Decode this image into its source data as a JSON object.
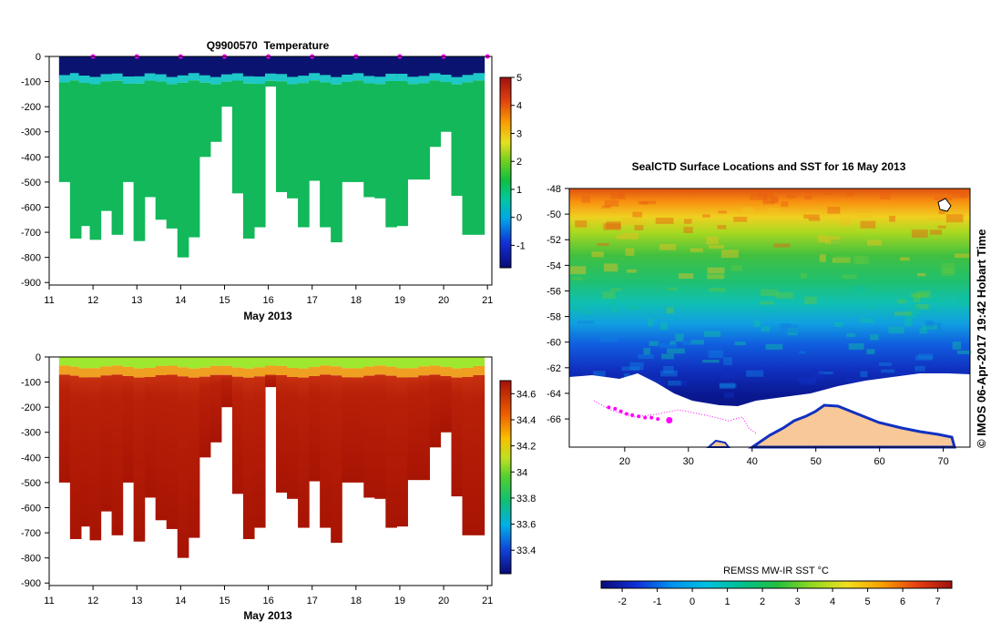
{
  "colors": {
    "temp_deep": "#12b85a",
    "temp_thermo": "#1ec8c8",
    "sal_deep": "#b01808",
    "sal_mid": "#c03010",
    "sal_surface": "#9fe830",
    "land": "#f8c898",
    "track": "#ff00ff"
  },
  "chart_data": [
    {
      "id": "temperature",
      "type": "heatmap",
      "title": "Q9900570  Temperature",
      "xlabel": "May 2013",
      "ylabel": "",
      "x_ticks": [
        "11",
        "12",
        "13",
        "14",
        "15",
        "16",
        "17",
        "18",
        "19",
        "20",
        "21"
      ],
      "xlim": [
        11,
        21.1
      ],
      "y_ticks": [
        "0",
        "-100",
        "-200",
        "-300",
        "-400",
        "-500",
        "-600",
        "-700",
        "-800",
        "-900"
      ],
      "ylim": [
        -910,
        0
      ],
      "colorbar": {
        "ticks": [
          "5",
          "4",
          "3",
          "2",
          "1",
          "0",
          "-1"
        ],
        "range": [
          -1.8,
          5
        ]
      },
      "profiles": {
        "day": [
          11.35,
          11.6,
          11.8,
          12.05,
          12.3,
          12.55,
          12.8,
          13.05,
          13.3,
          13.55,
          13.8,
          14.05,
          14.3,
          14.55,
          14.8,
          15.05,
          15.3,
          15.55,
          15.8,
          16.05,
          16.3,
          16.55,
          16.8,
          17.05,
          17.3,
          17.55,
          17.8,
          18.05,
          18.3,
          18.55,
          18.8,
          19.05,
          19.3,
          19.55,
          19.8,
          20.05,
          20.3,
          20.55,
          20.8
        ],
        "max_depth": [
          500,
          725,
          675,
          730,
          615,
          710,
          500,
          735,
          560,
          650,
          685,
          800,
          720,
          400,
          340,
          200,
          545,
          725,
          680,
          120,
          540,
          565,
          680,
          495,
          680,
          740,
          500,
          500,
          560,
          565,
          680,
          675,
          490,
          490,
          360,
          300,
          555,
          710,
          710
        ]
      },
      "markers_top": [
        12,
        13,
        14,
        15,
        16,
        17,
        18,
        19,
        20,
        21
      ]
    },
    {
      "id": "salinity",
      "type": "heatmap",
      "title": "",
      "xlabel": "May 2013",
      "ylabel": "",
      "x_ticks": [
        "11",
        "12",
        "13",
        "14",
        "15",
        "16",
        "17",
        "18",
        "19",
        "20",
        "21"
      ],
      "xlim": [
        11,
        21.1
      ],
      "y_ticks": [
        "0",
        "-100",
        "-200",
        "-300",
        "-400",
        "-500",
        "-600",
        "-700",
        "-800",
        "-900"
      ],
      "ylim": [
        -910,
        0
      ],
      "colorbar": {
        "ticks": [
          "34.6",
          "34.4",
          "34.2",
          "34",
          "33.8",
          "33.6",
          "33.4"
        ],
        "range": [
          33.22,
          34.7
        ]
      }
    },
    {
      "id": "sst_map",
      "type": "heatmap",
      "title": "SealCTD Surface Locations and SST for 16 May 2013",
      "x_ticks": [
        "20",
        "30",
        "40",
        "50",
        "60",
        "70"
      ],
      "xlim": [
        11.3,
        74.2
      ],
      "y_ticks": [
        "-48",
        "-50",
        "-52",
        "-54",
        "-56",
        "-58",
        "-60",
        "-62",
        "-64",
        "-66"
      ],
      "ylim": [
        -68.2,
        -48
      ],
      "colorbar_label": "REMSS MW-IR SST °C",
      "colorbar_ticks": [
        "-2",
        "-1",
        "0",
        "1",
        "2",
        "3",
        "4",
        "5",
        "6",
        "7"
      ],
      "colorbar_range": [
        -2.6,
        7.4
      ],
      "track_points": [
        [
          17.5,
          -65.1
        ],
        [
          18.5,
          -65.2
        ],
        [
          19.4,
          -65.4
        ],
        [
          20.3,
          -65.6
        ],
        [
          21.2,
          -65.7
        ],
        [
          22.2,
          -65.8
        ],
        [
          23.2,
          -65.9
        ],
        [
          24.2,
          -65.9
        ],
        [
          25.2,
          -66.0
        ],
        [
          27,
          -66.1
        ]
      ],
      "side_label": "© IMOS 06-Apr-2017 19:42 Hobart Time"
    }
  ]
}
